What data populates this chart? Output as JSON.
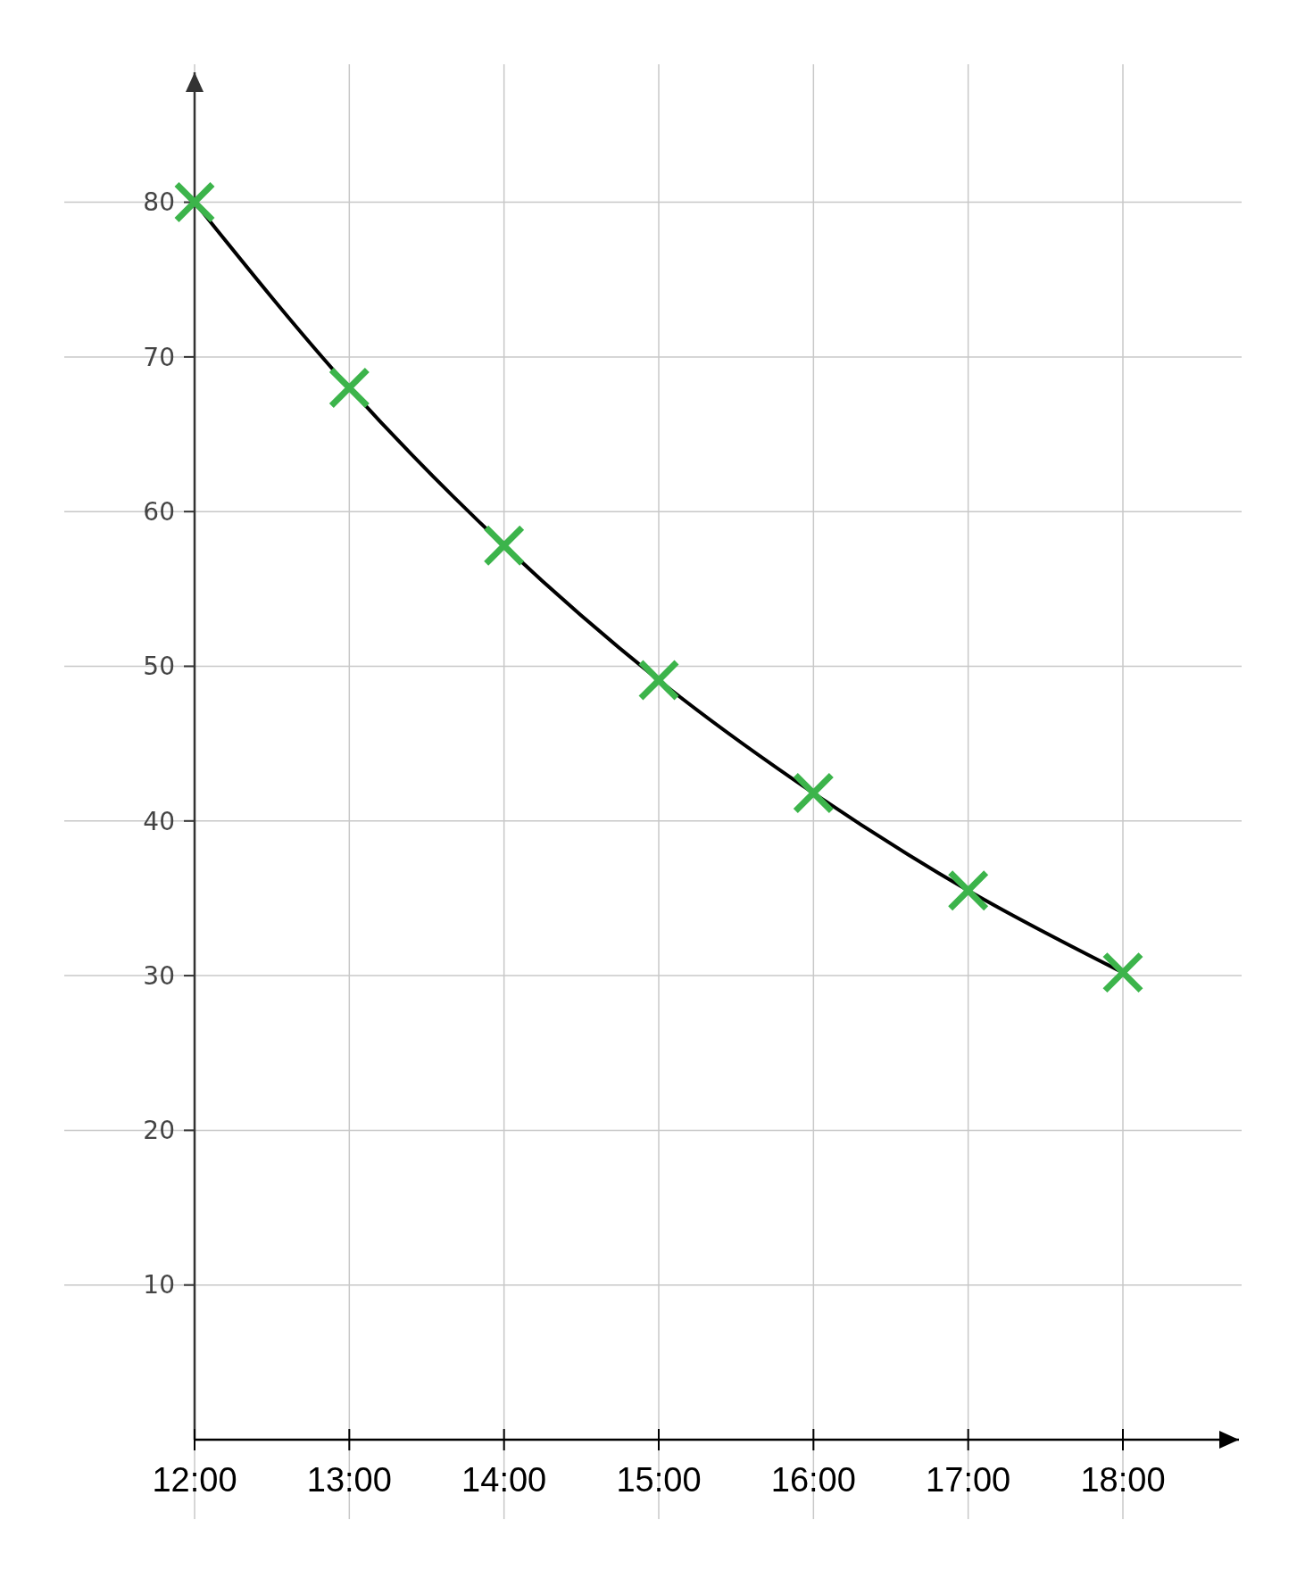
{
  "chart_data": {
    "type": "line",
    "x": [
      12,
      13,
      14,
      15,
      16,
      17,
      18
    ],
    "xlim": [
      12,
      18.75
    ],
    "xticks": [
      {
        "value": 12,
        "label": "12:00"
      },
      {
        "value": 13,
        "label": "13:00"
      },
      {
        "value": 14,
        "label": "14:00"
      },
      {
        "value": 15,
        "label": "15:00"
      },
      {
        "value": 16,
        "label": "16:00"
      },
      {
        "value": 17,
        "label": "17:00"
      },
      {
        "value": 18,
        "label": "18:00"
      }
    ],
    "ylim": [
      0,
      88.4
    ],
    "yticks": [
      10,
      20,
      30,
      40,
      50,
      60,
      70,
      80
    ],
    "grid": true,
    "series": [
      {
        "color": "#000000",
        "marker": "cross",
        "colors": [
          "#3cb44b",
          "#3cb44b",
          "#3cb44b",
          "#3cb44b",
          "#3cb44b",
          "#3cb44b",
          "#3cb44b"
        ],
        "values": [
          80,
          68,
          57.8,
          49.1,
          41.8,
          35.5,
          30.2
        ]
      }
    ]
  }
}
